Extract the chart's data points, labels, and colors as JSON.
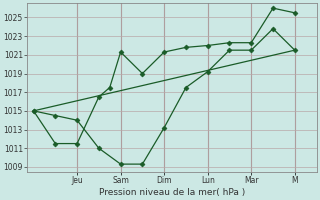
{
  "xlabel": "Pression niveau de la mer( hPa )",
  "bg_color": "#cce8e4",
  "line_color": "#1a5c28",
  "grid_color": "#b8a8a8",
  "ylim": [
    1008.5,
    1026.5
  ],
  "yticks": [
    1009,
    1011,
    1013,
    1015,
    1017,
    1019,
    1021,
    1023,
    1025
  ],
  "x_tick_positions": [
    2,
    4,
    6,
    8,
    10,
    12
  ],
  "x_tick_labels": [
    "Jeu",
    "Sam",
    "Dim",
    "Lun",
    "Mar",
    "M"
  ],
  "xlim": [
    -0.3,
    13.0
  ],
  "series1_x": [
    0,
    1,
    2,
    3,
    4,
    5,
    6,
    7,
    8,
    9,
    10,
    11,
    12
  ],
  "series1_y": [
    1015.0,
    1014.5,
    1014.0,
    1011.0,
    1009.3,
    1009.3,
    1013.2,
    1017.5,
    1019.2,
    1021.5,
    1021.5,
    1023.8,
    1021.5
  ],
  "series2_x": [
    0,
    1,
    2,
    3,
    3.5,
    4,
    5,
    6,
    7,
    8,
    9,
    10,
    11,
    12
  ],
  "series2_y": [
    1015.0,
    1011.5,
    1011.5,
    1016.5,
    1017.5,
    1021.3,
    1019.0,
    1021.3,
    1021.8,
    1022.0,
    1022.3,
    1022.3,
    1026.0,
    1025.5
  ],
  "series3_x": [
    0,
    12
  ],
  "series3_y": [
    1015.0,
    1021.5
  ]
}
